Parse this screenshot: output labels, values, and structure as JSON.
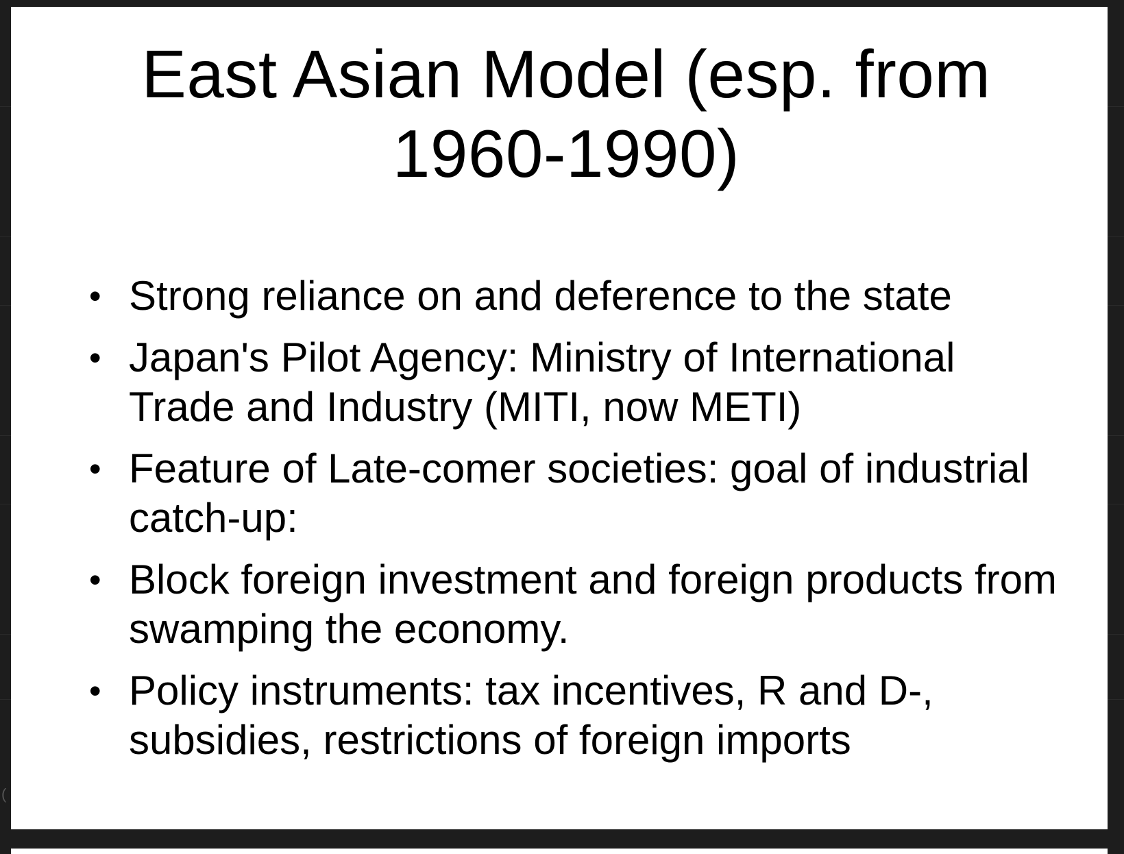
{
  "slide": {
    "title": "East Asian Model (esp. from 1960-1990)",
    "bullet_marker": "•",
    "bullets": [
      "Strong  reliance on and deference to the state",
      "Japan's Pilot Agency: Ministry of International Trade and Industry (MITI,  now METI)",
      "Feature of Late-comer societies: goal of industrial catch-up:",
      "Block foreign investment and foreign products from swamping the economy.",
      "Policy instruments: tax incentives, R and D-, subsidies, restrictions of foreign imports"
    ]
  },
  "viewer": {
    "edge_glyph": "(",
    "background_color": "#1d1d1d",
    "slide_color": "#ffffff"
  }
}
